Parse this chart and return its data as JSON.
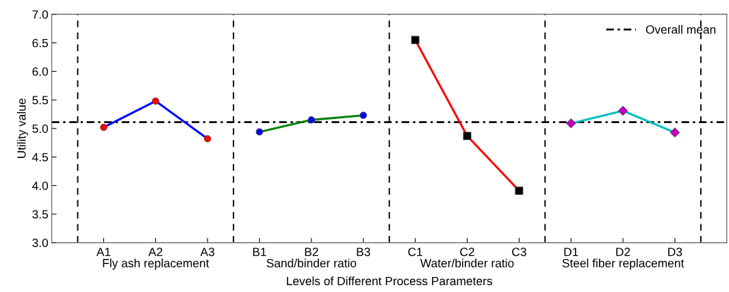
{
  "chart_data": {
    "type": "line",
    "ylabel": "Utility value",
    "xlabel": "Levels of Different Process Parameters",
    "categories": [
      "A1",
      "A2",
      "A3",
      "B1",
      "B2",
      "B3",
      "C1",
      "C2",
      "C3",
      "D1",
      "D2",
      "D3"
    ],
    "series": [
      {
        "color": "#0000ff",
        "marker": "circle",
        "colors": [
          "#ff0000",
          "#ff0000",
          "#ff0000",
          null,
          null,
          null,
          null,
          null,
          null,
          null,
          null,
          null
        ],
        "values": [
          5.02,
          5.48,
          4.82,
          null,
          null,
          null,
          null,
          null,
          null,
          null,
          null,
          null
        ]
      },
      {
        "color": "#008000",
        "marker": "circle",
        "colors": [
          null,
          null,
          null,
          "#0000ff",
          "#0000ff",
          "#0000ff",
          null,
          null,
          null,
          null,
          null,
          null
        ],
        "values": [
          null,
          null,
          null,
          4.94,
          5.15,
          5.23,
          null,
          null,
          null,
          null,
          null,
          null
        ]
      },
      {
        "color": "#ff0000",
        "marker": "square",
        "colors": [
          null,
          null,
          null,
          null,
          null,
          null,
          "#000000",
          "#000000",
          "#000000",
          null,
          null,
          null
        ],
        "values": [
          null,
          null,
          null,
          null,
          null,
          null,
          6.55,
          4.87,
          3.91,
          null,
          null,
          null
        ]
      },
      {
        "color": "#00bfbf",
        "marker": "diamond",
        "colors": [
          null,
          null,
          null,
          null,
          null,
          null,
          null,
          null,
          null,
          "#bf00bf",
          "#bf00bf",
          "#bf00bf"
        ],
        "values": [
          null,
          null,
          null,
          null,
          null,
          null,
          null,
          null,
          null,
          5.09,
          5.31,
          4.93
        ]
      }
    ],
    "ylim": [
      3.0,
      7.0
    ],
    "yticks": [
      {
        "value": 3.0,
        "label": "3.0"
      },
      {
        "value": 3.5,
        "label": "3.5"
      },
      {
        "value": 4.0,
        "label": "4.0"
      },
      {
        "value": 4.5,
        "label": "4.5"
      },
      {
        "value": 5.0,
        "label": "5.0"
      },
      {
        "value": 5.5,
        "label": "5.5"
      },
      {
        "value": 6.0,
        "label": "6.0"
      },
      {
        "value": 6.5,
        "label": "6.5"
      },
      {
        "value": 7.0,
        "label": "7.0"
      }
    ],
    "ref_lines": [
      {
        "axis": "y",
        "value": 5.11,
        "label": "Overall mean",
        "color": "#000000",
        "line_style": "dashdot"
      }
    ],
    "annotations": [
      "Fly ash replacement",
      "Sand/binder ratio",
      "Water/binder ratio",
      "Steel fiber replacement"
    ],
    "legend": "top right",
    "grid": false
  }
}
